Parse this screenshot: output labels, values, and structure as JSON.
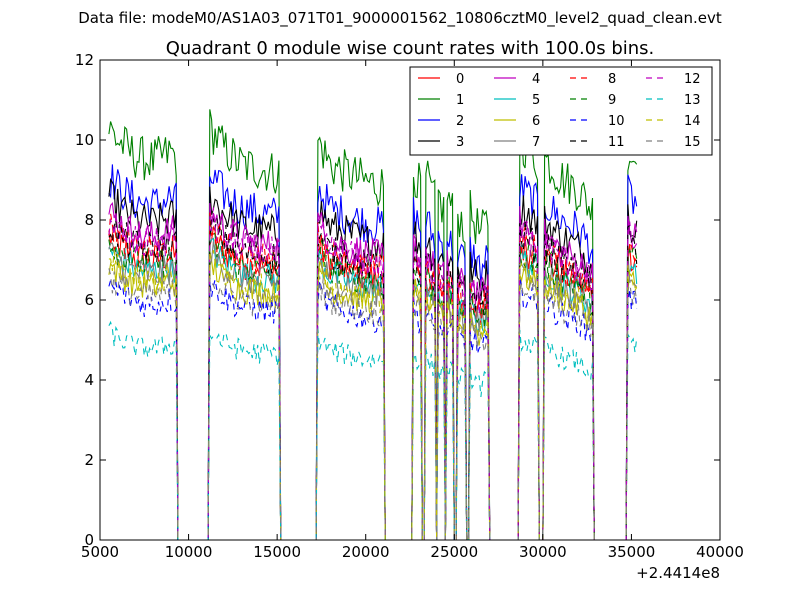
{
  "header": {
    "suptitle": "Data file: modeM0/AS1A03_071T01_9000001562_10806cztM0_level2_quad_clean.evt"
  },
  "chart_data": {
    "type": "line",
    "title": "Quadrant 0 module wise count rates with 100.0s bins.",
    "xlabel": "",
    "ylabel": "",
    "x_offset_label": "+2.4414e8",
    "xlim": [
      5000,
      40000
    ],
    "ylim": [
      0,
      12
    ],
    "xticks": [
      5000,
      10000,
      15000,
      20000,
      25000,
      30000,
      35000,
      40000
    ],
    "yticks": [
      0,
      2,
      4,
      6,
      8,
      10,
      12
    ],
    "grid": false,
    "legend_position": "top-right",
    "legend_columns": 4,
    "bin_size_s": 100,
    "on_intervals": [
      [
        5500,
        9300
      ],
      [
        11200,
        15100
      ],
      [
        17300,
        21000
      ],
      [
        22700,
        23100
      ],
      [
        23400,
        23900
      ],
      [
        24050,
        24400
      ],
      [
        24600,
        24950
      ],
      [
        25150,
        25600
      ],
      [
        25850,
        26950
      ],
      [
        28700,
        29700
      ],
      [
        30050,
        32800
      ],
      [
        34800,
        35300
      ]
    ],
    "profile": {
      "x": [
        5500,
        6000,
        7000,
        8000,
        9000,
        9300,
        11200,
        12000,
        13000,
        14000,
        15100,
        17300,
        18000,
        19000,
        20000,
        21000,
        22700,
        23100,
        23400,
        23900,
        24050,
        24400,
        24600,
        24950,
        25150,
        25600,
        25850,
        26500,
        26950,
        28700,
        29700,
        30050,
        31000,
        32000,
        32800,
        34800,
        35300
      ],
      "y": [
        1.0,
        0.97,
        0.93,
        0.92,
        0.94,
        0.93,
        1.0,
        0.95,
        0.91,
        0.9,
        0.89,
        0.97,
        0.91,
        0.89,
        0.87,
        0.86,
        0.9,
        0.85,
        0.88,
        0.82,
        0.84,
        0.8,
        0.84,
        0.79,
        0.8,
        0.76,
        0.8,
        0.74,
        0.78,
        0.97,
        0.92,
        0.93,
        0.88,
        0.85,
        0.8,
        0.95,
        0.92
      ]
    },
    "series": [
      {
        "name": "0",
        "color": "#ff0000",
        "dash": "solid",
        "level": 7.6
      },
      {
        "name": "1",
        "color": "#008000",
        "dash": "solid",
        "level": 10.3
      },
      {
        "name": "2",
        "color": "#0000ff",
        "dash": "solid",
        "level": 9.1
      },
      {
        "name": "3",
        "color": "#000000",
        "dash": "solid",
        "level": 8.6
      },
      {
        "name": "4",
        "color": "#bf00bf",
        "dash": "solid",
        "level": 8.2
      },
      {
        "name": "5",
        "color": "#00bfbf",
        "dash": "solid",
        "level": 7.3
      },
      {
        "name": "6",
        "color": "#bfbf00",
        "dash": "solid",
        "level": 6.9
      },
      {
        "name": "7",
        "color": "#808080",
        "dash": "solid",
        "level": 7.2
      },
      {
        "name": "8",
        "color": "#ff0000",
        "dash": "dashed",
        "level": 7.8
      },
      {
        "name": "9",
        "color": "#008000",
        "dash": "dashed",
        "level": 7.5
      },
      {
        "name": "10",
        "color": "#0000ff",
        "dash": "dashed",
        "level": 6.4
      },
      {
        "name": "11",
        "color": "#000000",
        "dash": "dashed",
        "level": 7.9
      },
      {
        "name": "12",
        "color": "#bf00bf",
        "dash": "dashed",
        "level": 8.0
      },
      {
        "name": "13",
        "color": "#00bfbf",
        "dash": "dashed",
        "level": 5.2
      },
      {
        "name": "14",
        "color": "#bfbf00",
        "dash": "dashed",
        "level": 7.0
      },
      {
        "name": "15",
        "color": "#808080",
        "dash": "dashed",
        "level": 6.6
      }
    ]
  }
}
